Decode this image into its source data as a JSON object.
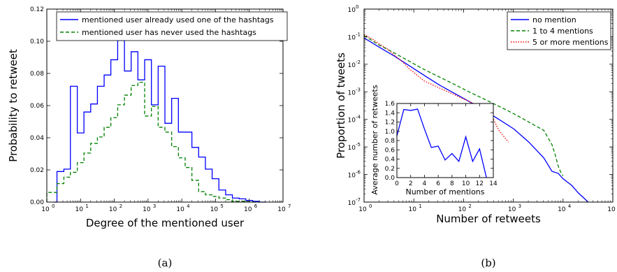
{
  "chart_data": [
    {
      "type": "line",
      "panel_label": "(a)",
      "xlabel": "Degree of the mentioned user",
      "ylabel": "Probability to retweet",
      "xscale": "log",
      "xlim": [
        1,
        10000000
      ],
      "ylim": [
        0,
        0.12
      ],
      "x_ticks": [
        "10",
        "10",
        "10",
        "10",
        "10",
        "10",
        "10",
        "10"
      ],
      "x_tick_exp": [
        "0",
        "1",
        "2",
        "3",
        "4",
        "5",
        "6",
        "7"
      ],
      "y_ticks": [
        "0.00",
        "0.02",
        "0.04",
        "0.06",
        "0.08",
        "0.10",
        "0.12"
      ],
      "legend_position": "top",
      "series": [
        {
          "name": "mentioned user already used one of the hashtags",
          "style": "solid",
          "color": "#0000ff",
          "x": [
            1.6,
            2,
            3.2,
            5,
            8,
            12.6,
            20,
            31.6,
            50,
            79,
            126,
            200,
            316,
            501,
            794,
            1259,
            1995,
            3162,
            5012,
            7943,
            12589,
            19953,
            31623,
            50119,
            79433,
            125893,
            199526,
            316228,
            501187,
            794328,
            1258925,
            1995262
          ],
          "y": [
            0.0,
            0.019,
            0.0205,
            0.072,
            0.043,
            0.056,
            0.061,
            0.072,
            0.079,
            0.0885,
            0.1005,
            0.0815,
            0.0935,
            0.076,
            0.0885,
            0.0605,
            0.0845,
            0.049,
            0.0645,
            0.0435,
            0.0435,
            0.034,
            0.028,
            0.0205,
            0.0145,
            0.0075,
            0.0045,
            0.0025,
            0.002,
            0.001,
            0.0005,
            0.0
          ]
        },
        {
          "name": "mentioned user has never used the hashtags",
          "style": "dashed",
          "color": "#008000",
          "x": [
            1,
            2,
            3.2,
            5,
            8,
            12.6,
            20,
            31.6,
            50,
            79,
            126,
            200,
            316,
            501,
            794,
            1259,
            1995,
            3162,
            5012,
            7943,
            12589,
            19953,
            31623,
            50119,
            79433,
            125893,
            199526,
            316228,
            501187,
            794328,
            1258925
          ],
          "y": [
            0.006,
            0.0115,
            0.0155,
            0.0185,
            0.0245,
            0.0305,
            0.0365,
            0.0405,
            0.0465,
            0.0525,
            0.0605,
            0.0665,
            0.0725,
            0.0745,
            0.0535,
            0.0595,
            0.0465,
            0.0435,
            0.0345,
            0.0275,
            0.0215,
            0.0135,
            0.0065,
            0.0045,
            0.0035,
            0.0025,
            0.0015,
            0.0005,
            0.0005,
            0.0002,
            0.0
          ]
        }
      ]
    },
    {
      "type": "line",
      "panel_label": "(b)",
      "xlabel": "Number of retweets",
      "ylabel": "Proportion of tweets",
      "xscale": "log",
      "yscale": "log",
      "xlim": [
        1,
        100000
      ],
      "ylim": [
        1e-07,
        1
      ],
      "x_ticks": [
        "10",
        "10",
        "10",
        "10",
        "10",
        "10"
      ],
      "x_tick_exp": [
        "0",
        "1",
        "2",
        "3",
        "4",
        "5"
      ],
      "y_ticks": [
        "10",
        "10",
        "10",
        "10",
        "10",
        "10",
        "10",
        "10"
      ],
      "y_tick_exp": [
        "-7",
        "-6",
        "-5",
        "-4",
        "-3",
        "-2",
        "-1",
        "0"
      ],
      "legend_position": "top-right",
      "series": [
        {
          "name": "no mention",
          "style": "solid",
          "color": "#0000ff",
          "x": [
            1,
            2,
            4,
            8,
            16,
            32,
            64,
            128,
            256,
            512,
            1024,
            2048,
            4096,
            6000,
            8000,
            10000,
            15000,
            20000,
            32000
          ],
          "y": [
            0.09,
            0.042,
            0.02,
            0.009,
            0.004,
            0.0018,
            0.0009,
            0.00045,
            0.00022,
            0.0001,
            4.5e-05,
            1.5e-05,
            4e-06,
            1.3e-06,
            1.1e-06,
            7e-07,
            4e-07,
            2.2e-07,
            1e-07
          ]
        },
        {
          "name": "1 to 4 mentions",
          "style": "dashed",
          "color": "#008000",
          "x": [
            1,
            2,
            4,
            8,
            16,
            32,
            64,
            128,
            256,
            512,
            1024,
            2048,
            4096,
            6000,
            7000,
            8000,
            9000,
            10000
          ],
          "y": [
            0.11,
            0.05,
            0.026,
            0.013,
            0.0065,
            0.0035,
            0.0019,
            0.001,
            0.00055,
            0.0003,
            0.00016,
            8e-05,
            4e-05,
            1.2e-05,
            5e-06,
            2e-06,
            1.2e-06,
            9e-07
          ]
        },
        {
          "name": "5 or more mentions",
          "style": "dotted",
          "color": "#ff0000",
          "x": [
            1,
            1.5,
            2,
            3,
            4,
            6,
            8,
            16,
            32,
            64,
            128,
            256,
            400,
            512,
            700,
            800
          ],
          "y": [
            0.12,
            0.08,
            0.055,
            0.035,
            0.022,
            0.012,
            0.007,
            0.0025,
            0.0014,
            0.0008,
            0.00045,
            0.00025,
            0.0001,
            4e-05,
            2e-05,
            1.5e-05
          ]
        }
      ],
      "inset": {
        "type": "line",
        "xlabel": "Number of mentions",
        "ylabel": "Average number of retweets",
        "xlim": [
          0,
          14
        ],
        "ylim": [
          0,
          1.6
        ],
        "x_ticks": [
          "0",
          "2",
          "4",
          "6",
          "8",
          "10",
          "12",
          "14"
        ],
        "y_ticks": [
          "0.0",
          "0.2",
          "0.4",
          "0.6",
          "0.8",
          "1.0",
          "1.2",
          "1.4",
          "1.6"
        ],
        "series": [
          {
            "style": "solid",
            "color": "#0000ff",
            "x": [
              0,
              1,
              2,
              3,
              4,
              5,
              6,
              7,
              8,
              9,
              10,
              11,
              12,
              13
            ],
            "y": [
              0.9,
              1.47,
              1.45,
              1.48,
              1.05,
              0.65,
              0.68,
              0.38,
              0.52,
              0.35,
              0.88,
              0.35,
              0.62,
              0.0
            ]
          }
        ]
      }
    }
  ]
}
